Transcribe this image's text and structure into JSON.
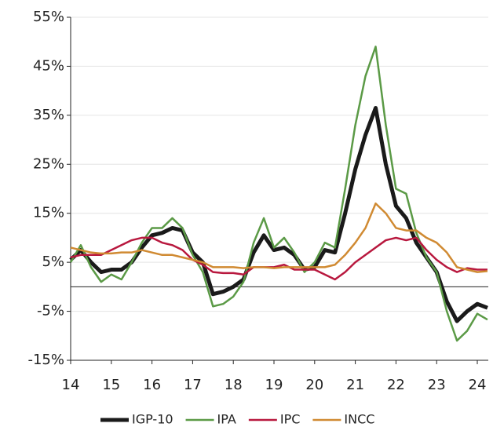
{
  "chart_data": {
    "type": "line",
    "x": [
      14,
      14.25,
      14.5,
      14.75,
      15,
      15.25,
      15.5,
      15.75,
      16,
      16.25,
      16.5,
      16.75,
      17,
      17.25,
      17.5,
      17.75,
      18,
      18.25,
      18.5,
      18.75,
      19,
      19.25,
      19.5,
      19.75,
      20,
      20.25,
      20.5,
      20.75,
      21,
      21.25,
      21.5,
      21.75,
      22,
      22.25,
      22.5,
      22.75,
      23,
      23.25,
      23.5,
      23.75,
      24,
      24.25
    ],
    "series": [
      {
        "name": "IGP-10",
        "color": "#1a1a1a",
        "width": 5,
        "values": [
          5.5,
          7.5,
          5,
          3,
          3.5,
          3.5,
          5,
          8,
          10.5,
          11,
          12,
          11.5,
          7,
          5,
          -1.5,
          -1,
          0,
          1.5,
          7,
          10.5,
          7.5,
          8,
          6.5,
          3.5,
          4,
          7.5,
          7,
          15,
          24,
          31,
          36.5,
          25,
          16.5,
          14,
          9,
          6,
          3,
          -3,
          -7,
          -5,
          -3.5,
          -4.3
        ]
      },
      {
        "name": "IPA",
        "color": "#5b9a46",
        "width": 2.5,
        "values": [
          5,
          8.5,
          4,
          1,
          2.5,
          1.5,
          5,
          9,
          12,
          12,
          14,
          12,
          6.5,
          3,
          -4,
          -3.5,
          -2,
          1,
          9,
          14,
          8,
          10,
          7,
          3,
          5,
          9,
          8,
          20,
          33,
          43,
          49,
          33,
          20,
          19,
          11,
          6,
          3,
          -5,
          -11,
          -9,
          -5.5,
          -6.7
        ]
      },
      {
        "name": "IPC",
        "color": "#b8183e",
        "width": 2.5,
        "values": [
          6,
          6.5,
          6.5,
          6.5,
          7.5,
          8.5,
          9.5,
          10,
          10,
          9,
          8.5,
          7.5,
          5.5,
          4.5,
          3,
          2.8,
          2.8,
          2.5,
          4,
          4,
          4,
          4.5,
          3.5,
          3.5,
          3.5,
          2.5,
          1.5,
          3,
          5,
          6.5,
          8,
          9.5,
          10,
          9.5,
          10,
          7.5,
          5.5,
          4,
          3,
          3.8,
          3.5,
          3.5
        ]
      },
      {
        "name": "INCC",
        "color": "#d08a32",
        "width": 2.5,
        "values": [
          8,
          7.5,
          7,
          6.8,
          6.8,
          7,
          7,
          7.5,
          7,
          6.5,
          6.5,
          6,
          5.5,
          5,
          4,
          4,
          4,
          3.8,
          4,
          4,
          3.8,
          4,
          4,
          4,
          4,
          4,
          4.5,
          6.5,
          9,
          12,
          17,
          15,
          12,
          11.5,
          11.5,
          10,
          9,
          7,
          4,
          3.5,
          3,
          3.2
        ]
      }
    ],
    "xlim": [
      14,
      24.27
    ],
    "xticks": [
      14,
      15,
      16,
      17,
      18,
      19,
      20,
      21,
      22,
      23,
      24
    ],
    "ylim": [
      -15,
      55
    ],
    "yticks": [
      {
        "value": -15,
        "label": "-15%"
      },
      {
        "value": -5,
        "label": "-5%"
      },
      {
        "value": 5,
        "label": "5%"
      },
      {
        "value": 15,
        "label": "15%"
      },
      {
        "value": 25,
        "label": "25%"
      },
      {
        "value": 35,
        "label": "35%"
      },
      {
        "value": 45,
        "label": "45%"
      },
      {
        "value": 55,
        "label": "55%"
      }
    ],
    "grid": true,
    "legend": "bottom"
  }
}
